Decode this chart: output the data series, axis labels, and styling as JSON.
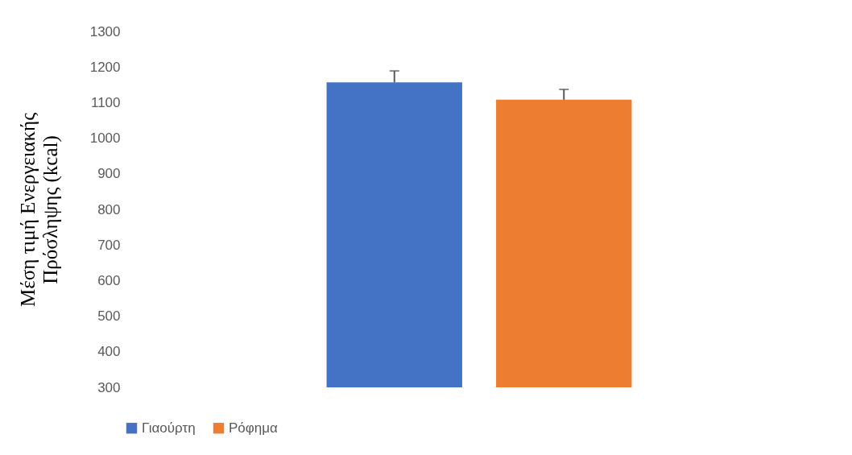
{
  "chart_data": {
    "type": "bar",
    "ylabel": "Μέση τιμή Ενεργειακής Πρόσληψης (kcal)",
    "categories": [
      null
    ],
    "series": [
      {
        "name": "Γιαούρτη",
        "color": "#4472c4",
        "values": [
          1157
        ],
        "errors": [
          [
            1157,
            1189
          ]
        ]
      },
      {
        "name": "Ρόφημα",
        "color": "#ed7d31",
        "values": [
          1108
        ],
        "errors": [
          [
            1108,
            1137
          ]
        ]
      }
    ],
    "ylim": [
      300,
      1300
    ],
    "yticks": [
      300,
      400,
      500,
      600,
      700,
      800,
      900,
      1000,
      1100,
      1200,
      1300
    ],
    "grid": false,
    "legend": "bottom"
  }
}
